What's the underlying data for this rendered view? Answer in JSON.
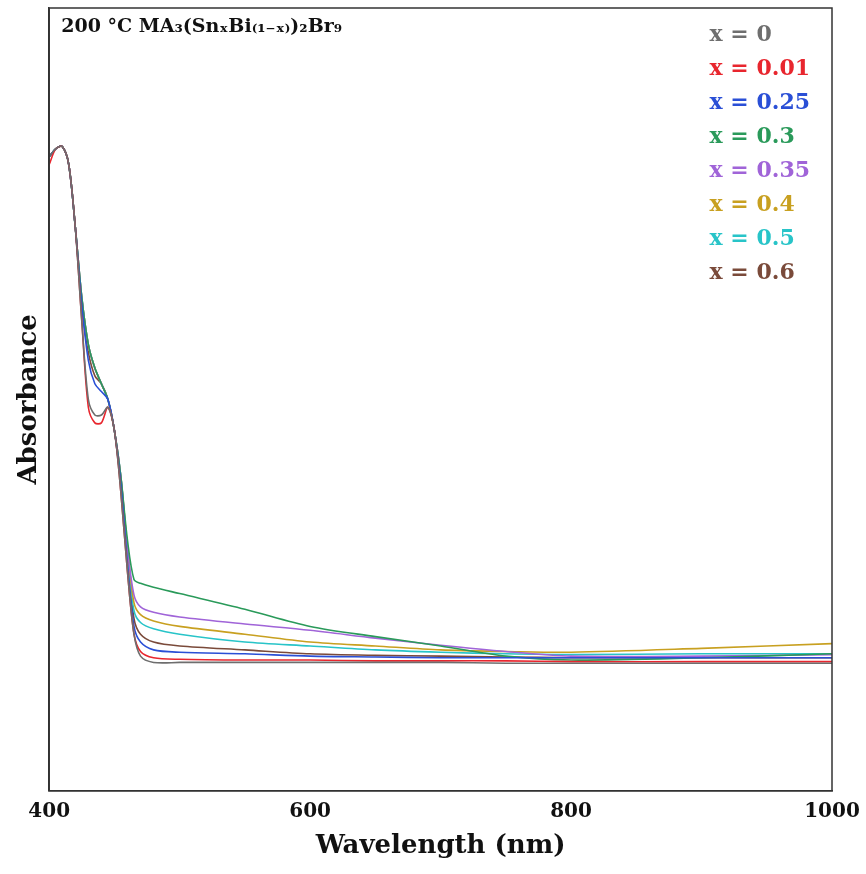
{
  "chart_data": {
    "type": "line",
    "title": "200 °C MA₃(SnₓBi₍₁₋ₓ₎)₂Br₉",
    "x_label": "Wavelength (nm)",
    "y_label": "Absorbance",
    "x": [
      400,
      405,
      410,
      415,
      420,
      425,
      430,
      435,
      440,
      445,
      450,
      455,
      460,
      465,
      470,
      480,
      500,
      550,
      600,
      650,
      700,
      750,
      800,
      900,
      1000
    ],
    "series": [
      {
        "name": "x = 0",
        "color": "#6e6e6e",
        "values": [
          0.81,
          0.82,
          0.823,
          0.8,
          0.72,
          0.6,
          0.5,
          0.48,
          0.48,
          0.49,
          0.46,
          0.38,
          0.28,
          0.2,
          0.172,
          0.164,
          0.164,
          0.164,
          0.164,
          0.164,
          0.164,
          0.163,
          0.163,
          0.163,
          0.163
        ]
      },
      {
        "name": "x = 0.01",
        "color": "#e8262e",
        "values": [
          0.8,
          0.82,
          0.823,
          0.8,
          0.72,
          0.6,
          0.49,
          0.47,
          0.47,
          0.49,
          0.46,
          0.38,
          0.28,
          0.2,
          0.178,
          0.17,
          0.168,
          0.167,
          0.167,
          0.166,
          0.166,
          0.166,
          0.165,
          0.165,
          0.165
        ]
      },
      {
        "name": "x = 0.25",
        "color": "#2a4fd6",
        "values": [
          0.81,
          0.82,
          0.823,
          0.8,
          0.72,
          0.62,
          0.55,
          0.52,
          0.51,
          0.5,
          0.46,
          0.39,
          0.29,
          0.21,
          0.19,
          0.18,
          0.177,
          0.175,
          0.172,
          0.171,
          0.17,
          0.17,
          0.17,
          0.17,
          0.17
        ]
      },
      {
        "name": "x = 0.3",
        "color": "#2a9a5a",
        "values": [
          0.81,
          0.82,
          0.823,
          0.8,
          0.72,
          0.63,
          0.57,
          0.54,
          0.52,
          0.5,
          0.46,
          0.4,
          0.32,
          0.27,
          0.265,
          0.26,
          0.252,
          0.232,
          0.21,
          0.197,
          0.185,
          0.172,
          0.167,
          0.17,
          0.175
        ]
      },
      {
        "name": "x = 0.35",
        "color": "#a064d8",
        "values": [
          0.81,
          0.82,
          0.823,
          0.8,
          0.72,
          0.63,
          0.57,
          0.54,
          0.52,
          0.5,
          0.46,
          0.4,
          0.31,
          0.25,
          0.235,
          0.228,
          0.222,
          0.213,
          0.205,
          0.195,
          0.186,
          0.178,
          0.172,
          0.172,
          0.174
        ]
      },
      {
        "name": "x = 0.4",
        "color": "#c8a020",
        "values": [
          0.81,
          0.82,
          0.823,
          0.8,
          0.72,
          0.63,
          0.57,
          0.54,
          0.52,
          0.5,
          0.46,
          0.4,
          0.31,
          0.24,
          0.225,
          0.217,
          0.21,
          0.2,
          0.19,
          0.185,
          0.18,
          0.178,
          0.177,
          0.182,
          0.188
        ]
      },
      {
        "name": "x = 0.5",
        "color": "#28c4c8",
        "values": [
          0.81,
          0.82,
          0.823,
          0.8,
          0.72,
          0.63,
          0.57,
          0.54,
          0.52,
          0.5,
          0.46,
          0.4,
          0.3,
          0.23,
          0.215,
          0.207,
          0.2,
          0.19,
          0.185,
          0.18,
          0.177,
          0.175,
          0.174,
          0.175,
          0.175
        ]
      },
      {
        "name": "x = 0.6",
        "color": "#7a4a3a",
        "values": [
          0.81,
          0.82,
          0.823,
          0.8,
          0.72,
          0.62,
          0.56,
          0.53,
          0.52,
          0.5,
          0.46,
          0.39,
          0.3,
          0.22,
          0.2,
          0.19,
          0.185,
          0.18,
          0.175,
          0.173,
          0.172,
          0.171,
          0.17,
          0.17,
          0.17
        ]
      }
    ],
    "xlim": [
      400,
      1000
    ],
    "xticks": [
      400,
      600,
      800,
      1000
    ],
    "ylim": [
      0,
      1
    ],
    "tick_labels": "x",
    "grid": false,
    "legend": "upper right"
  }
}
